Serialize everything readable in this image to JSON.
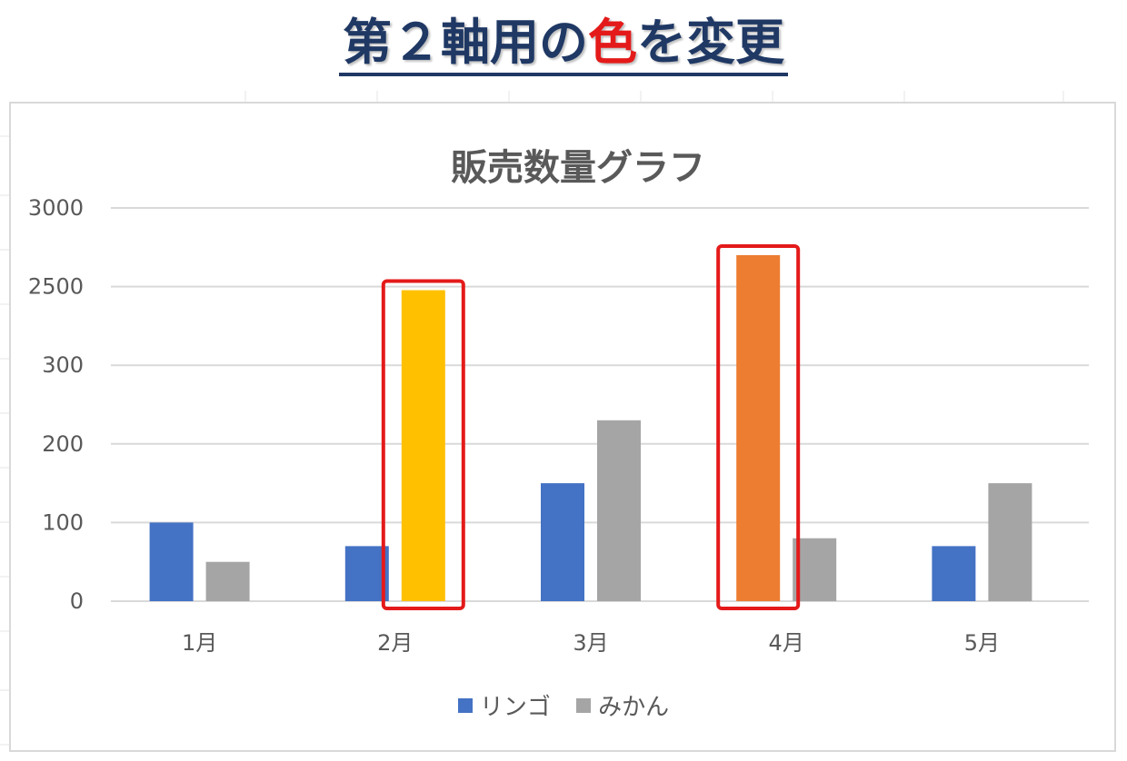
{
  "banner": {
    "title_pre": "第２軸用の",
    "title_accent": "色",
    "title_post": "を変更",
    "accent_color": "#e41a1a",
    "title_color": "#1f3864"
  },
  "chart_data": {
    "type": "bar",
    "title": "販売数量グラフ",
    "categories": [
      "1月",
      "2月",
      "3月",
      "4月",
      "5月"
    ],
    "y_tick_labels": [
      "0",
      "100",
      "200",
      "300",
      "2500",
      "3000"
    ],
    "y_tick_values": [
      0,
      100,
      200,
      300,
      2500,
      3000
    ],
    "series": [
      {
        "name": "リンゴ",
        "color": "#4472c4",
        "values": [
          100,
          70,
          150,
          2700,
          70
        ],
        "axis": "primary"
      },
      {
        "name": "みかん",
        "color": "#a5a5a5",
        "values": [
          50,
          2400,
          230,
          80,
          150
        ],
        "axis": "secondary"
      }
    ],
    "highlighted_points": [
      {
        "category": "2月",
        "series": "みかん",
        "color": "#ffc000"
      },
      {
        "category": "4月",
        "series": "リンゴ",
        "color": "#ed7d31"
      }
    ],
    "highlight_box_color": "#e41a1a",
    "grid": true,
    "legend_position": "bottom"
  }
}
